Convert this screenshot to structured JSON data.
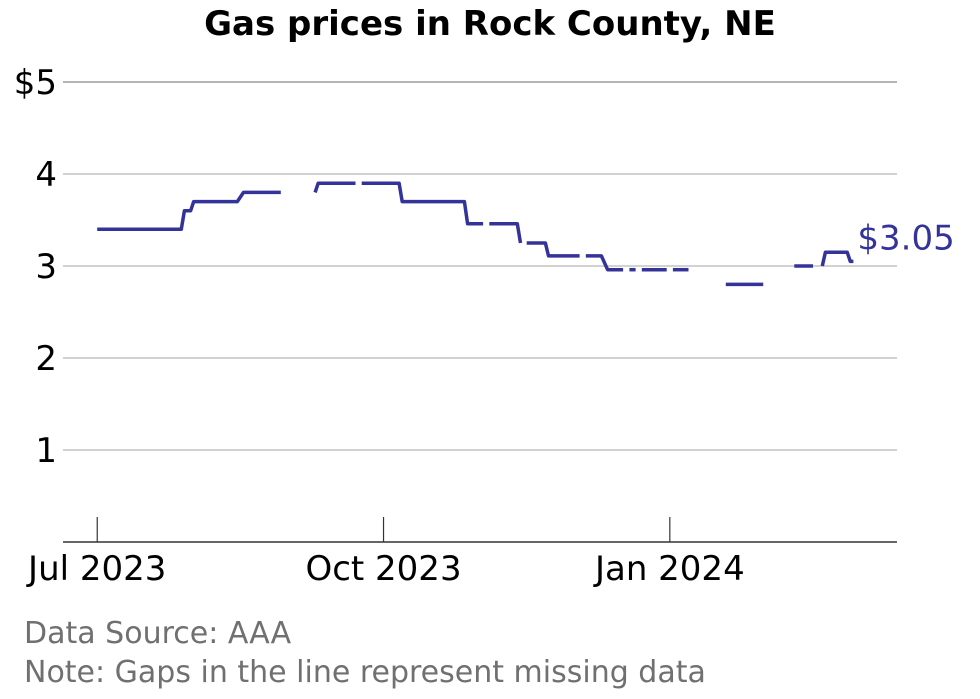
{
  "chart_data": {
    "type": "line",
    "title": "Gas prices in Rock County, NE",
    "xlabel": "",
    "ylabel": "",
    "ylim": [
      0,
      5
    ],
    "xlim": [
      "2023-06-20",
      "2024-03-14"
    ],
    "yticks": [
      {
        "value": 1,
        "label": "1"
      },
      {
        "value": 2,
        "label": "2"
      },
      {
        "value": 3,
        "label": "3"
      },
      {
        "value": 4,
        "label": "4"
      },
      {
        "value": 5,
        "label": "$5"
      }
    ],
    "xticks": [
      {
        "value": "2023-07-01",
        "label": "Jul 2023"
      },
      {
        "value": "2023-10-01",
        "label": "Oct 2023"
      },
      {
        "value": "2024-01-01",
        "label": "Jan 2024"
      }
    ],
    "grid": "horizontal",
    "series": [
      {
        "color": "#33339a",
        "segments": [
          [
            [
              "2023-07-01",
              3.4
            ],
            [
              "2023-07-28",
              3.4
            ],
            [
              "2023-07-29",
              3.6
            ],
            [
              "2023-07-31",
              3.6
            ],
            [
              "2023-08-01",
              3.7
            ],
            [
              "2023-08-15",
              3.7
            ],
            [
              "2023-08-17",
              3.8
            ],
            [
              "2023-08-29",
              3.8
            ]
          ],
          [
            [
              "2023-09-09",
              3.8
            ],
            [
              "2023-09-10",
              3.9
            ],
            [
              "2023-09-22",
              3.9
            ]
          ],
          [
            [
              "2023-09-24",
              3.9
            ],
            [
              "2023-10-06",
              3.9
            ],
            [
              "2023-10-07",
              3.7
            ],
            [
              "2023-10-27",
              3.7
            ],
            [
              "2023-10-28",
              3.46
            ],
            [
              "2023-11-02",
              3.46
            ]
          ],
          [
            [
              "2023-11-04",
              3.46
            ],
            [
              "2023-11-13",
              3.46
            ],
            [
              "2023-11-14",
              3.25
            ]
          ],
          [
            [
              "2023-11-16",
              3.25
            ],
            [
              "2023-11-22",
              3.25
            ],
            [
              "2023-11-23",
              3.11
            ],
            [
              "2023-12-03",
              3.11
            ]
          ],
          [
            [
              "2023-12-05",
              3.11
            ],
            [
              "2023-12-10",
              3.11
            ],
            [
              "2023-12-12",
              2.96
            ],
            [
              "2023-12-17",
              2.96
            ]
          ],
          [
            [
              "2023-12-19",
              2.96
            ],
            [
              "2023-12-21",
              2.96
            ]
          ],
          [
            [
              "2023-12-23",
              2.96
            ],
            [
              "2023-12-31",
              2.96
            ]
          ],
          [
            [
              "2024-01-02",
              2.96
            ],
            [
              "2024-01-07",
              2.96
            ]
          ],
          [
            [
              "2024-01-19",
              2.8
            ],
            [
              "2024-01-31",
              2.8
            ]
          ],
          [
            [
              "2024-02-10",
              3.0
            ],
            [
              "2024-02-16",
              3.0
            ]
          ],
          [
            [
              "2024-02-19",
              3.0
            ],
            [
              "2024-02-20",
              3.15
            ],
            [
              "2024-02-27",
              3.15
            ],
            [
              "2024-02-28",
              3.05
            ],
            [
              "2024-02-29",
              3.05
            ]
          ]
        ],
        "last_value_label": "$3.05"
      }
    ]
  },
  "footer": {
    "source": "Data Source: AAA",
    "note": "Note: Gaps in the line represent missing data"
  }
}
